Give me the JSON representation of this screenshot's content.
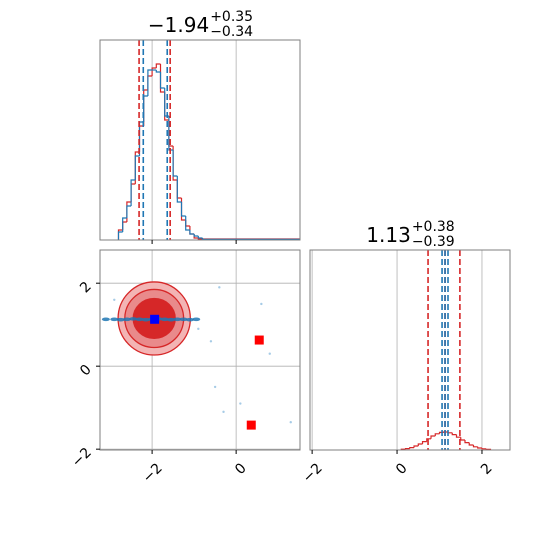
{
  "chart_data": [
    {
      "type": "histogram",
      "title": {
        "value": "−1.94",
        "upper": "+0.35",
        "lower": "−0.34"
      },
      "xlim": [
        -3.24,
        1.52
      ],
      "ylim": [
        0,
        1
      ],
      "xticks": [
        {
          "value": -2,
          "label": "−2"
        },
        0
      ],
      "tick_labels": false,
      "grid": true,
      "bins": [
        -2.8,
        -2.7,
        -2.6,
        -2.5,
        -2.4,
        -2.3,
        -2.2,
        -2.1,
        -2.0,
        -1.9,
        -1.8,
        -1.7,
        -1.6,
        -1.5,
        -1.4,
        -1.3,
        -1.2,
        -1.1,
        -1.0,
        -0.9,
        -0.8,
        1.5
      ],
      "series": [
        {
          "color": "#d62728",
          "values": [
            0.05,
            0.09,
            0.19,
            0.28,
            0.44,
            0.57,
            0.75,
            0.82,
            0.86,
            0.88,
            0.74,
            0.6,
            0.47,
            0.3,
            0.21,
            0.1,
            0.07,
            0.03,
            0.01,
            0.005,
            0.005
          ]
        },
        {
          "color": "#1f77b4",
          "values": [
            0.04,
            0.11,
            0.17,
            0.3,
            0.42,
            0.59,
            0.72,
            0.85,
            0.85,
            0.84,
            0.76,
            0.62,
            0.45,
            0.32,
            0.19,
            0.12,
            0.05,
            0.03,
            0.02,
            0.01,
            0.003
          ]
        }
      ],
      "quantiles": [
        {
          "color": "#d62728",
          "values": [
            -2.31,
            -1.57
          ]
        },
        {
          "color": "#1f77b4",
          "values": [
            -2.21,
            -1.64
          ]
        }
      ]
    },
    {
      "type": "scatter",
      "xlim": [
        -3.24,
        1.52
      ],
      "ylim": [
        -2.02,
        2.8
      ],
      "xticks": [
        {
          "value": -2,
          "label": "−2"
        },
        0
      ],
      "yticks": [
        {
          "value": -2,
          "label": "−2"
        },
        0,
        2
      ],
      "tick_labels": true,
      "grid": true,
      "center": [
        -1.95,
        1.15
      ],
      "contours": [
        {
          "rx": 0.86,
          "ry": 0.88,
          "color": "#f3b4b4"
        },
        {
          "rx": 0.7,
          "ry": 0.7,
          "color": "#e98a8b"
        },
        {
          "rx": 0.5,
          "ry": 0.48,
          "color": "#d62728"
        }
      ],
      "faint_points": {
        "color": "#a6cbe6",
        "x": [
          -0.5,
          -0.3,
          -0.6,
          0.6,
          1.3,
          0.8,
          -0.4,
          -2.9,
          -0.9,
          0.1
        ],
        "y": [
          -0.5,
          -1.1,
          0.6,
          1.5,
          -1.35,
          0.3,
          1.9,
          1.6,
          0.9,
          -0.9
        ]
      },
      "points": {
        "color": "#1f77b4",
        "x": [
          -3.1,
          -2.9,
          -2.75,
          -2.6,
          -2.45,
          -2.3,
          -2.15,
          -2.0,
          -1.85,
          -1.7,
          -1.55,
          -1.4,
          -1.25,
          -1.1,
          -0.95
        ],
        "y": [
          1.13,
          1.13,
          1.12,
          1.13,
          1.14,
          1.13,
          1.12,
          1.13,
          1.14,
          1.13,
          1.12,
          1.13,
          1.13,
          1.12,
          1.13
        ]
      },
      "markers": [
        {
          "color": "#0000ff",
          "x": -1.94,
          "y": 1.13
        },
        {
          "color": "#ff0000",
          "x": 0.55,
          "y": 0.63
        },
        {
          "color": "#ff0000",
          "x": 0.36,
          "y": -1.42
        }
      ]
    },
    {
      "type": "histogram",
      "title": {
        "value": "1.13",
        "upper": "+0.38",
        "lower": "−0.39"
      },
      "xlim": [
        -2.05,
        2.66
      ],
      "ylim": [
        0,
        1
      ],
      "xticks": [
        {
          "value": -2,
          "label": "−2"
        },
        0,
        2
      ],
      "tick_labels": true,
      "grid": true,
      "bins": [
        0.1,
        0.2,
        0.3,
        0.4,
        0.5,
        0.6,
        0.7,
        0.8,
        0.9,
        1.0,
        1.1,
        1.2,
        1.3,
        1.4,
        1.5,
        1.6,
        1.7,
        1.8,
        1.9,
        2.0,
        2.1,
        2.2
      ],
      "series": [
        {
          "color": "#d62728",
          "values": [
            0.004,
            0.007,
            0.012,
            0.02,
            0.03,
            0.042,
            0.056,
            0.07,
            0.081,
            0.088,
            0.09,
            0.086,
            0.077,
            0.064,
            0.05,
            0.037,
            0.025,
            0.016,
            0.01,
            0.006,
            0.003
          ]
        }
      ],
      "quantiles": [
        {
          "color": "#d62728",
          "values": [
            0.73,
            1.13,
            1.48
          ]
        },
        {
          "color": "#1f77b4",
          "values": [
            1.06,
            1.13,
            1.2
          ]
        }
      ]
    }
  ]
}
